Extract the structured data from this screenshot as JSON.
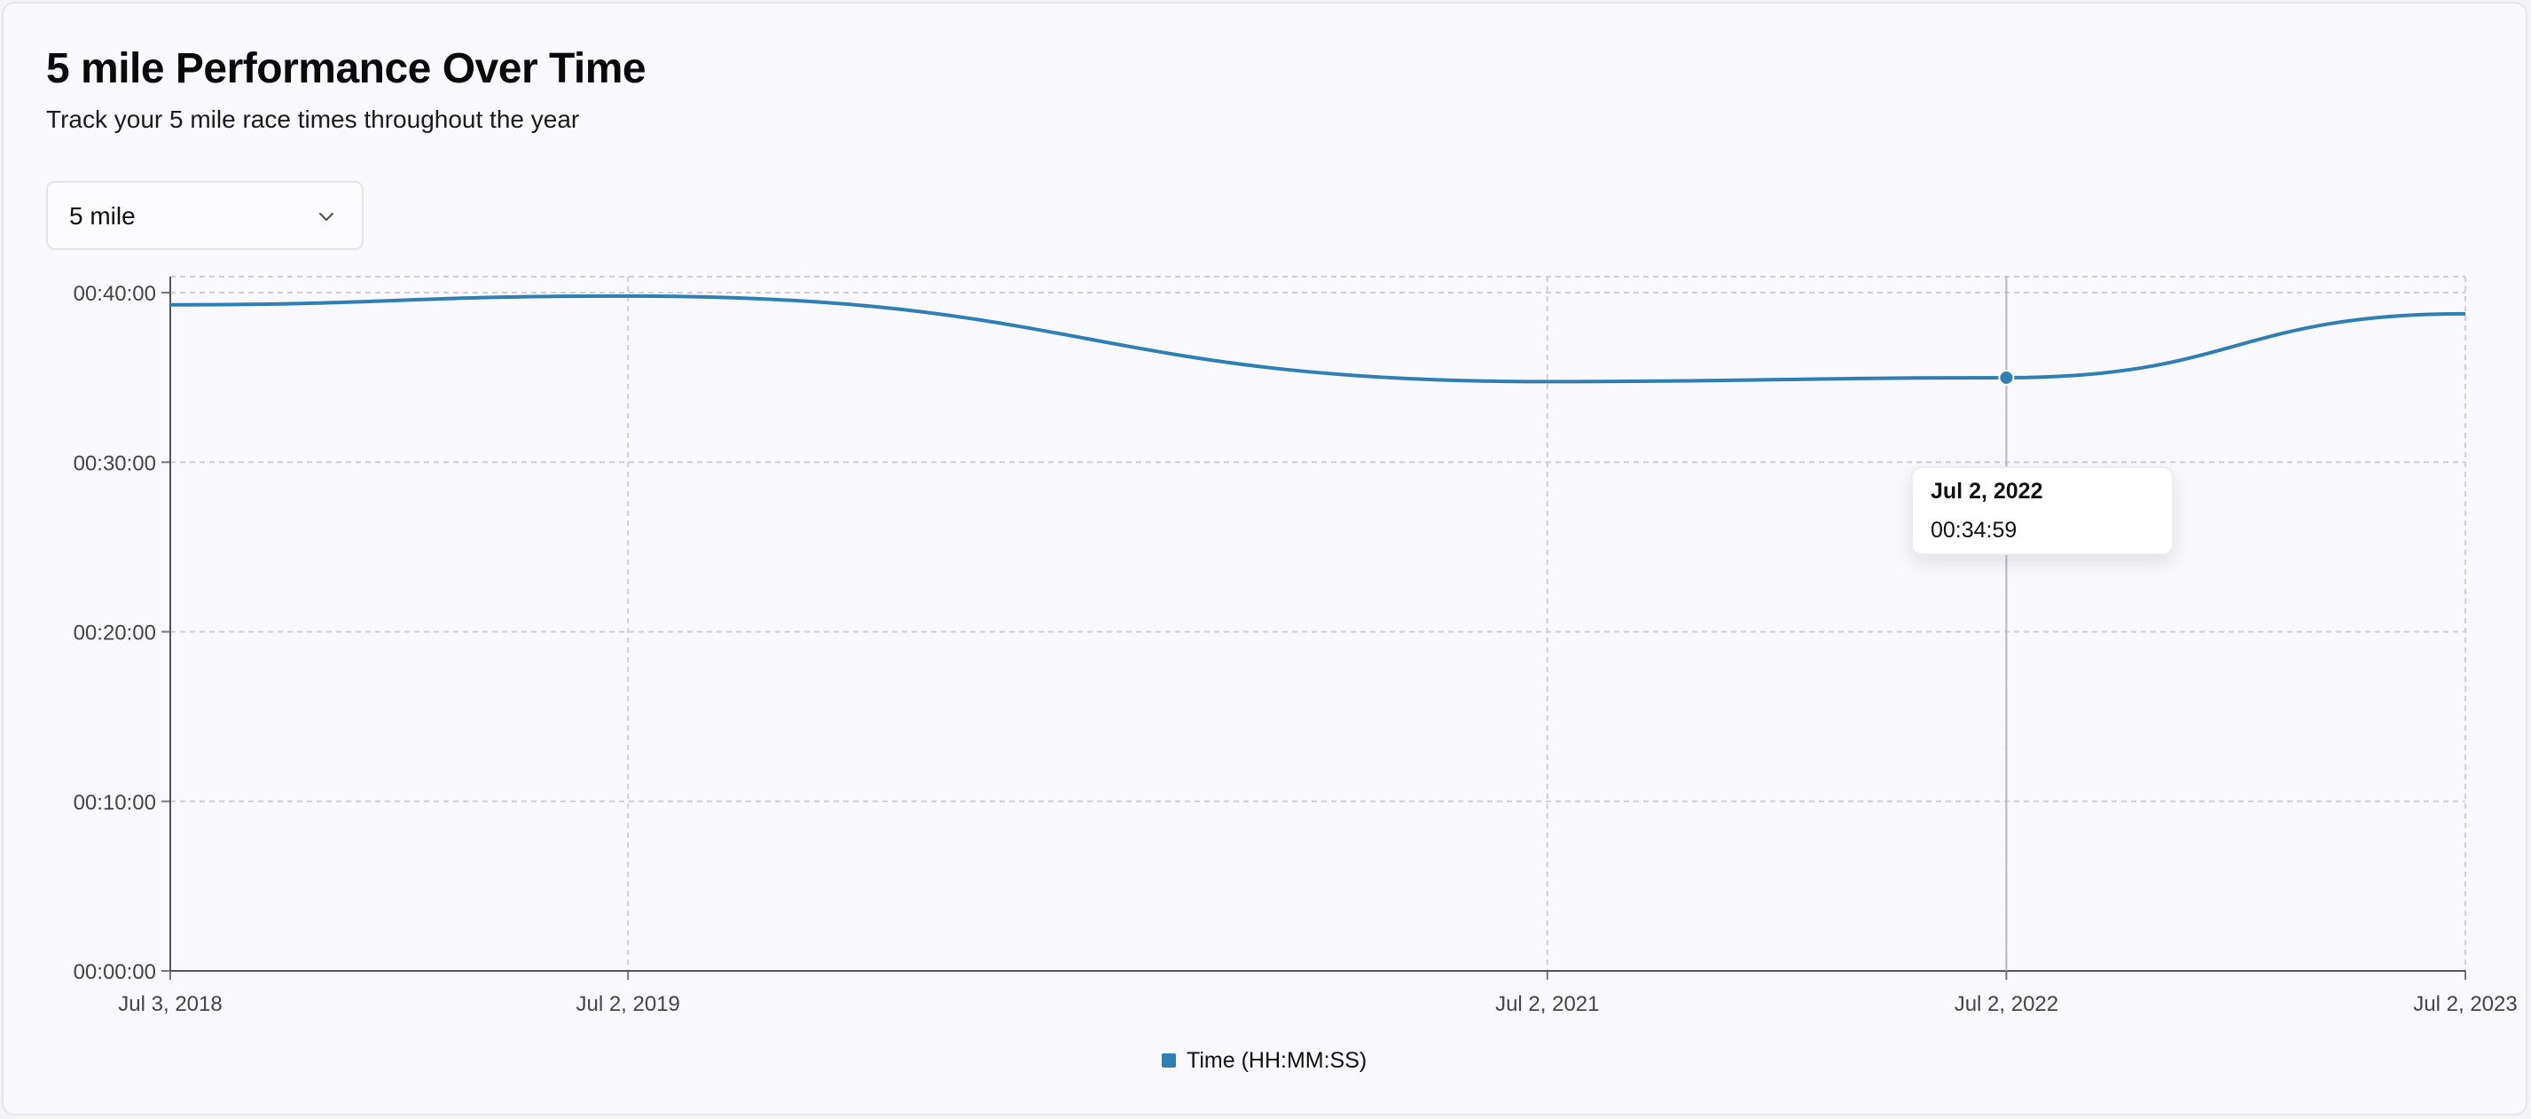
{
  "header": {
    "title": "5 mile Performance Over Time",
    "subtitle": "Track your 5 mile race times throughout the year"
  },
  "distance_select": {
    "value": "5 mile",
    "icon": "chevron-down-icon"
  },
  "tooltip": {
    "date": "Jul 2, 2022",
    "value": "00:34:59"
  },
  "legend": {
    "label": "Time (HH:MM:SS)",
    "color": "#2f7fb3"
  },
  "chart_data": {
    "type": "line",
    "x": [
      "Jul 3, 2018",
      "Jul 2, 2019",
      "Jul 2, 2021",
      "Jul 2, 2022",
      "Jul 2, 2023"
    ],
    "series": [
      {
        "name": "Time (HH:MM:SS)",
        "values": [
          "00:39:17",
          "00:39:48",
          "00:34:45",
          "00:34:59",
          "00:38:45"
        ],
        "color": "#2f7fb3"
      }
    ],
    "y_ticks": [
      "00:00:00",
      "00:10:00",
      "00:20:00",
      "00:30:00",
      "00:40:00"
    ],
    "ylim": [
      "00:00:00",
      "00:40:00"
    ],
    "grid": true,
    "legend_position": "bottom-center",
    "active_point": "Jul 2, 2022"
  }
}
